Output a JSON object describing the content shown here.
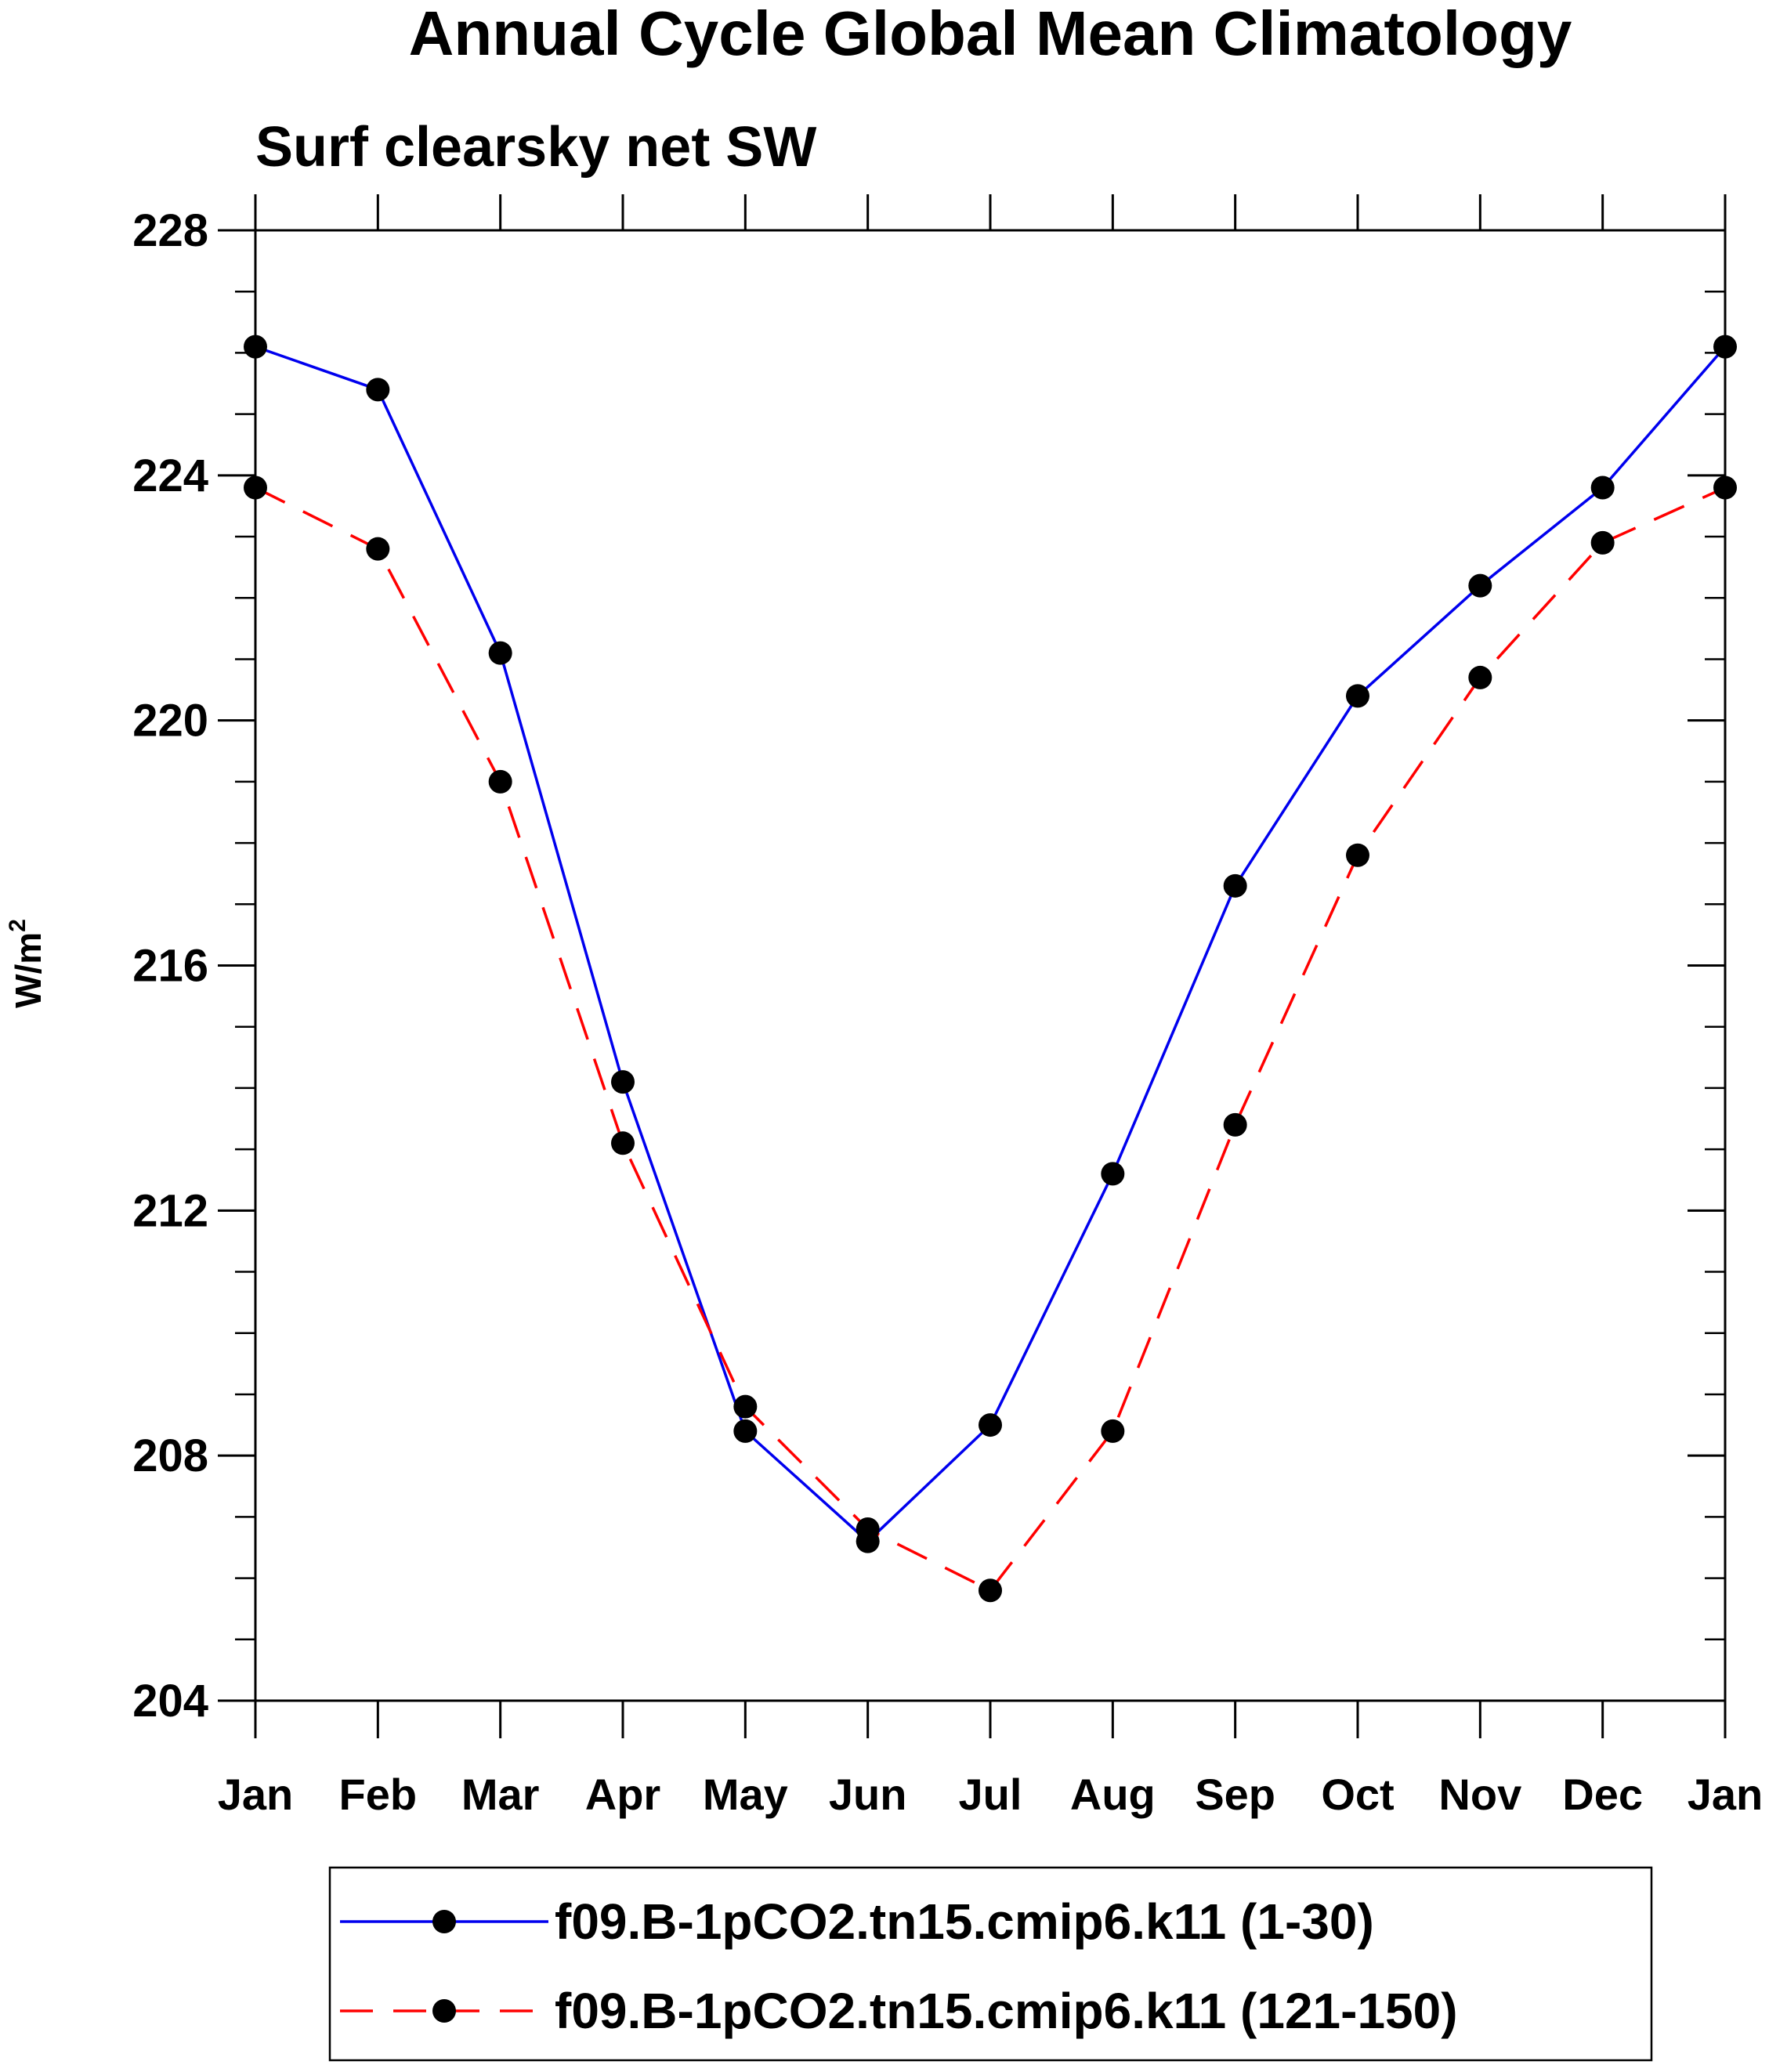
{
  "chart_data": {
    "type": "line",
    "title": "Annual Cycle Global Mean Climatology",
    "subtitle": "Surf clearsky net SW",
    "ylabel": "W/m",
    "ylabel_superscript": "2",
    "xlabel": "",
    "categories": [
      "Jan",
      "Feb",
      "Mar",
      "Apr",
      "May",
      "Jun",
      "Jul",
      "Aug",
      "Sep",
      "Oct",
      "Nov",
      "Dec",
      "Jan"
    ],
    "ylim": [
      204,
      228
    ],
    "yticks": [
      204,
      208,
      212,
      216,
      220,
      224,
      228
    ],
    "yticks_minor_step": 1,
    "grid": false,
    "legend_position": "bottom",
    "series": [
      {
        "name": "f09.B-1pCO2.tn15.cmip6.k11 (1-30)",
        "color": "#0000ee",
        "dash": "solid",
        "marker": "dot",
        "values": [
          226.1,
          225.4,
          221.1,
          214.1,
          208.4,
          206.6,
          208.5,
          212.6,
          217.3,
          220.4,
          222.2,
          223.8,
          226.1
        ]
      },
      {
        "name": "f09.B-1pCO2.tn15.cmip6.k11 (121-150)",
        "color": "#ff0000",
        "dash": "dashed",
        "marker": "dot",
        "values": [
          223.8,
          222.8,
          219.0,
          213.1,
          208.8,
          206.8,
          205.8,
          208.4,
          213.4,
          217.8,
          220.7,
          222.9,
          223.8
        ]
      }
    ]
  }
}
